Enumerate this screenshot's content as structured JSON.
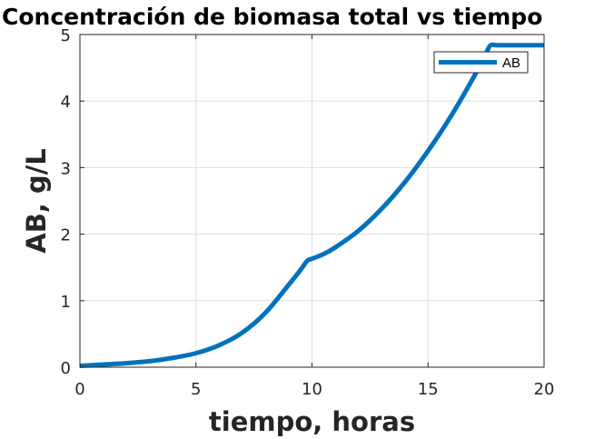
{
  "chart_data": {
    "type": "line",
    "title": "Concentración de biomasa total vs tiempo",
    "xlabel": "tiempo, horas",
    "ylabel": "AB, g/L",
    "xlim": [
      0,
      20
    ],
    "ylim": [
      0,
      5
    ],
    "xticks": [
      "0",
      "5",
      "10",
      "15",
      "20"
    ],
    "yticks": [
      "0",
      "1",
      "2",
      "3",
      "4",
      "5"
    ],
    "grid": true,
    "legend_placement": "top-right",
    "series": [
      {
        "name": "AB",
        "color": "#0072BD",
        "x": [
          0,
          1,
          2,
          3,
          4,
          5,
          6,
          7,
          8,
          9,
          9.5,
          9.8,
          10,
          10.5,
          11,
          12,
          13,
          14,
          15,
          16,
          17,
          17.5,
          17.7,
          18,
          19,
          20
        ],
        "y": [
          0.02,
          0.04,
          0.06,
          0.09,
          0.14,
          0.21,
          0.33,
          0.52,
          0.82,
          1.24,
          1.46,
          1.6,
          1.63,
          1.7,
          1.8,
          2.05,
          2.38,
          2.78,
          3.25,
          3.78,
          4.38,
          4.72,
          4.84,
          4.84,
          4.84,
          4.84
        ]
      }
    ]
  }
}
